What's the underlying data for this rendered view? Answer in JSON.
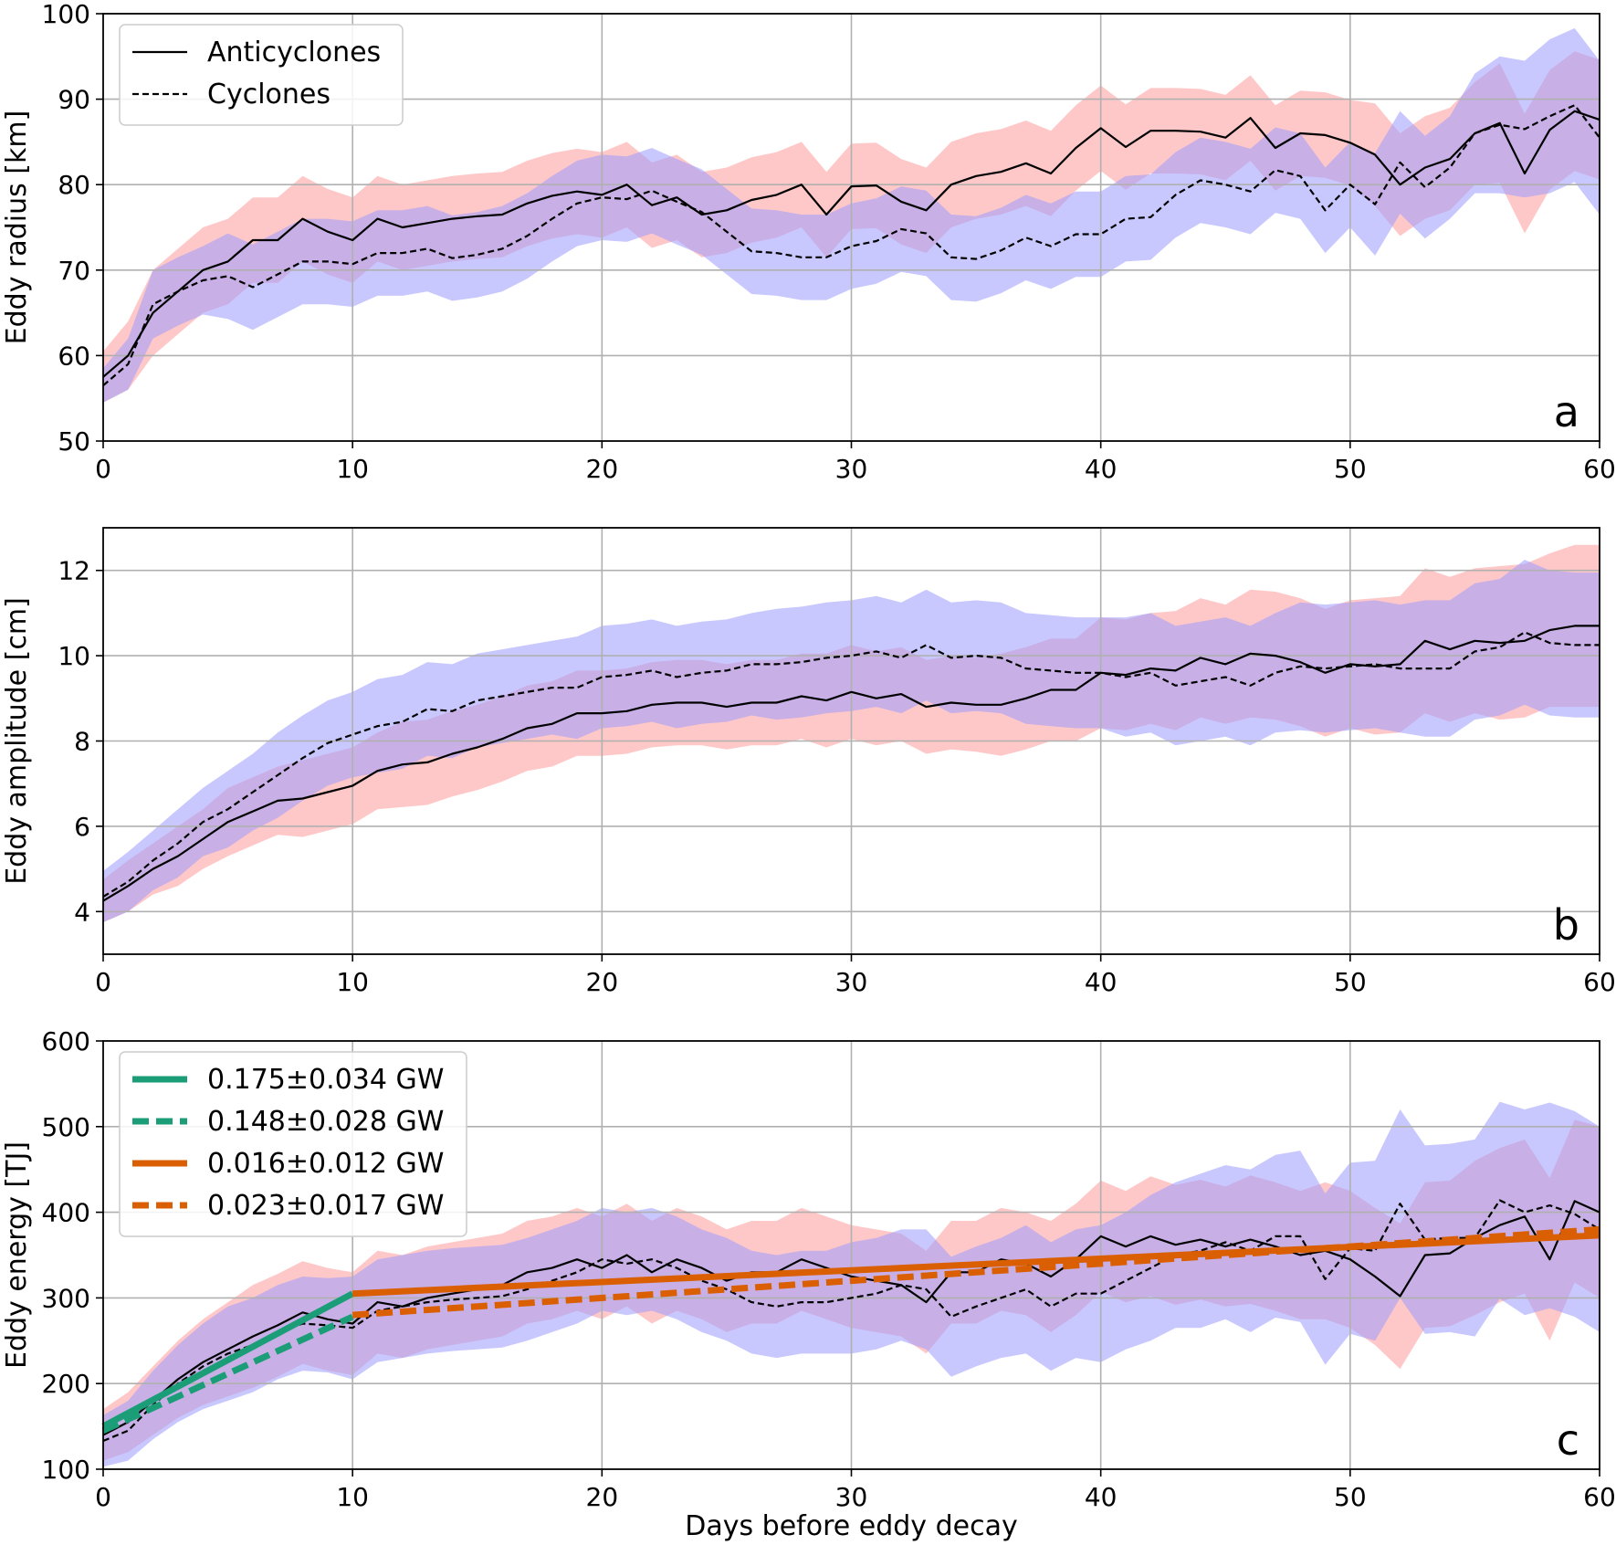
{
  "chart_data": [
    {
      "type": "line",
      "panel": "a",
      "ylabel": "Eddy radius [km]",
      "xlabel": "",
      "xlim": [
        0,
        60
      ],
      "ylim": [
        50,
        100
      ],
      "xticks": [
        0,
        10,
        20,
        30,
        40,
        50,
        60
      ],
      "yticks": [
        50,
        60,
        70,
        80,
        90,
        100
      ],
      "grid": true,
      "legend_position": "top-left",
      "legend": [
        {
          "label": "Anticyclones",
          "style": "solid",
          "color": "#000000"
        },
        {
          "label": "Cyclones",
          "style": "dashed",
          "color": "#000000"
        }
      ],
      "x": [
        0,
        1,
        2,
        3,
        4,
        5,
        6,
        7,
        8,
        9,
        10,
        11,
        12,
        13,
        14,
        15,
        16,
        17,
        18,
        19,
        20,
        21,
        22,
        23,
        24,
        25,
        26,
        27,
        28,
        29,
        30,
        31,
        32,
        33,
        34,
        35,
        36,
        37,
        38,
        39,
        40,
        41,
        42,
        43,
        44,
        45,
        46,
        47,
        48,
        49,
        50,
        51,
        52,
        53,
        54,
        55,
        56,
        57,
        58,
        59,
        60
      ],
      "series": [
        {
          "name": "Anticyclones",
          "style": "solid",
          "band_color": "#ff9a9a",
          "values": [
            57.5,
            60,
            65,
            67.5,
            70,
            71,
            73.5,
            73.5,
            76,
            74.5,
            73.5,
            76,
            75,
            75.5,
            76,
            76.3,
            76.5,
            77.8,
            78.7,
            79.2,
            78.8,
            80,
            77.6,
            78.5,
            76.5,
            77,
            78.2,
            78.8,
            80,
            76.5,
            79.8,
            79.9,
            78,
            77,
            80,
            81,
            81.5,
            82.5,
            81.3,
            84.3,
            86.6,
            84.4,
            86.3,
            86.3,
            86.2,
            85.5,
            87.8,
            84.3,
            86,
            85.8,
            84.9,
            83.5,
            80,
            82,
            83,
            86,
            87.2,
            81.3,
            86.4,
            88.6,
            87.6
          ],
          "spread": [
            3,
            4,
            5,
            5,
            5,
            5,
            5,
            5,
            5,
            5,
            5,
            5,
            5,
            5,
            5,
            5,
            5,
            5,
            5,
            5,
            5,
            5,
            5,
            5,
            5,
            5,
            5,
            5,
            5,
            5,
            5,
            5,
            5,
            5,
            5,
            5,
            5,
            5,
            5,
            5,
            5,
            5,
            5,
            5,
            5,
            5,
            5,
            5,
            5,
            5,
            5,
            6,
            6,
            6,
            6,
            6,
            7,
            7,
            7,
            7,
            7
          ]
        },
        {
          "name": "Cyclones",
          "style": "dashed",
          "band_color": "#9a9aff",
          "values": [
            56.5,
            59,
            66,
            67.5,
            68.8,
            69.3,
            68,
            69.5,
            71,
            71,
            70.7,
            72,
            72,
            72.5,
            71.4,
            71.8,
            72.5,
            74,
            76,
            77.8,
            78.5,
            78.3,
            79.3,
            78,
            76.8,
            74.5,
            72.2,
            72,
            71.5,
            71.5,
            72.8,
            73.4,
            74.8,
            74.3,
            71.5,
            71.3,
            72.3,
            73.8,
            72.8,
            74.2,
            74.2,
            76,
            76.2,
            78.8,
            80.5,
            80,
            79.2,
            81.7,
            81,
            77,
            80,
            77.7,
            82.6,
            79.7,
            82,
            86,
            87,
            86.5,
            88,
            89.3,
            85.5
          ],
          "spread": [
            2,
            3,
            4,
            4,
            4,
            5,
            5,
            5,
            5,
            5,
            5,
            5,
            5,
            5,
            5,
            5,
            5,
            5,
            5,
            5,
            5,
            5,
            5,
            5,
            5,
            5,
            5,
            5,
            5,
            5,
            5,
            5,
            5,
            5,
            5,
            5,
            5,
            5,
            5,
            5,
            5,
            5,
            5,
            5,
            5,
            5,
            5,
            5,
            5,
            5,
            5,
            6,
            6,
            6,
            6,
            7,
            8,
            8,
            9,
            9,
            9
          ]
        }
      ],
      "annotations": [
        "a"
      ]
    },
    {
      "type": "line",
      "panel": "b",
      "ylabel": "Eddy amplitude [cm]",
      "xlabel": "",
      "xlim": [
        0,
        60
      ],
      "ylim": [
        3,
        13
      ],
      "xticks": [
        0,
        10,
        20,
        30,
        40,
        50,
        60
      ],
      "yticks": [
        4,
        6,
        8,
        10,
        12
      ],
      "grid": true,
      "x": [
        0,
        1,
        2,
        3,
        4,
        5,
        6,
        7,
        8,
        9,
        10,
        11,
        12,
        13,
        14,
        15,
        16,
        17,
        18,
        19,
        20,
        21,
        22,
        23,
        24,
        25,
        26,
        27,
        28,
        29,
        30,
        31,
        32,
        33,
        34,
        35,
        36,
        37,
        38,
        39,
        40,
        41,
        42,
        43,
        44,
        45,
        46,
        47,
        48,
        49,
        50,
        51,
        52,
        53,
        54,
        55,
        56,
        57,
        58,
        59,
        60
      ],
      "series": [
        {
          "name": "Anticyclones",
          "style": "solid",
          "band_color": "#ff9a9a",
          "values": [
            4.25,
            4.6,
            5.0,
            5.3,
            5.7,
            6.1,
            6.35,
            6.6,
            6.65,
            6.8,
            6.95,
            7.3,
            7.45,
            7.5,
            7.7,
            7.85,
            8.05,
            8.3,
            8.4,
            8.65,
            8.65,
            8.7,
            8.85,
            8.9,
            8.9,
            8.8,
            8.9,
            8.9,
            9.05,
            8.95,
            9.15,
            9.0,
            9.1,
            8.8,
            8.9,
            8.85,
            8.85,
            9.0,
            9.2,
            9.2,
            9.6,
            9.55,
            9.7,
            9.65,
            9.95,
            9.8,
            10.05,
            10.0,
            9.85,
            9.6,
            9.8,
            9.75,
            9.8,
            10.35,
            10.15,
            10.35,
            10.3,
            10.35,
            10.6,
            10.7,
            10.7
          ],
          "spread": [
            0.5,
            0.6,
            0.6,
            0.7,
            0.7,
            0.8,
            0.8,
            0.8,
            0.9,
            0.9,
            0.9,
            0.9,
            1.0,
            1.0,
            1.0,
            1.0,
            1.0,
            1.0,
            1.0,
            1.0,
            1.0,
            1.0,
            1.0,
            1.0,
            1.0,
            1.0,
            1.0,
            1.0,
            1.0,
            1.1,
            1.1,
            1.1,
            1.1,
            1.1,
            1.1,
            1.1,
            1.2,
            1.2,
            1.2,
            1.2,
            1.3,
            1.3,
            1.3,
            1.4,
            1.4,
            1.4,
            1.5,
            1.5,
            1.5,
            1.5,
            1.5,
            1.6,
            1.6,
            1.7,
            1.7,
            1.7,
            1.8,
            1.8,
            1.8,
            1.9,
            1.9
          ]
        },
        {
          "name": "Cyclones",
          "style": "dashed",
          "band_color": "#9a9aff",
          "values": [
            4.35,
            4.7,
            5.2,
            5.6,
            6.1,
            6.4,
            6.8,
            7.2,
            7.6,
            7.95,
            8.15,
            8.35,
            8.45,
            8.75,
            8.7,
            8.95,
            9.05,
            9.15,
            9.25,
            9.25,
            9.5,
            9.55,
            9.65,
            9.5,
            9.6,
            9.65,
            9.8,
            9.8,
            9.85,
            9.95,
            10.0,
            10.1,
            9.95,
            10.25,
            9.95,
            10.0,
            9.95,
            9.7,
            9.65,
            9.6,
            9.6,
            9.5,
            9.6,
            9.3,
            9.4,
            9.5,
            9.3,
            9.6,
            9.75,
            9.7,
            9.75,
            9.8,
            9.7,
            9.7,
            9.7,
            10.1,
            10.2,
            10.55,
            10.3,
            10.25,
            10.25
          ],
          "spread": [
            0.6,
            0.7,
            0.7,
            0.8,
            0.8,
            0.9,
            0.9,
            1.0,
            1.0,
            1.0,
            1.0,
            1.1,
            1.1,
            1.1,
            1.1,
            1.1,
            1.1,
            1.1,
            1.1,
            1.2,
            1.2,
            1.2,
            1.2,
            1.2,
            1.2,
            1.2,
            1.2,
            1.3,
            1.3,
            1.3,
            1.3,
            1.3,
            1.3,
            1.3,
            1.3,
            1.3,
            1.3,
            1.3,
            1.3,
            1.3,
            1.3,
            1.4,
            1.4,
            1.4,
            1.4,
            1.4,
            1.4,
            1.4,
            1.5,
            1.5,
            1.5,
            1.5,
            1.5,
            1.6,
            1.6,
            1.6,
            1.6,
            1.7,
            1.7,
            1.7,
            1.7
          ]
        }
      ],
      "annotations": [
        "b"
      ]
    },
    {
      "type": "line",
      "panel": "c",
      "ylabel": "Eddy energy [TJ]",
      "xlabel": "Days before eddy decay",
      "xlim": [
        0,
        60
      ],
      "ylim": [
        100,
        600
      ],
      "xticks": [
        0,
        10,
        20,
        30,
        40,
        50,
        60
      ],
      "yticks": [
        100,
        200,
        300,
        400,
        500,
        600
      ],
      "grid": true,
      "legend_position": "top-left",
      "legend": [
        {
          "label": "0.175±0.034 GW",
          "style": "solid",
          "color": "#1b9e77"
        },
        {
          "label": "0.148±0.028 GW",
          "style": "dashed",
          "color": "#1b9e77"
        },
        {
          "label": "0.016±0.012 GW",
          "style": "solid",
          "color": "#d95f02"
        },
        {
          "label": "0.023±0.017 GW",
          "style": "dashed",
          "color": "#d95f02"
        }
      ],
      "x": [
        0,
        1,
        2,
        3,
        4,
        5,
        6,
        7,
        8,
        9,
        10,
        11,
        12,
        13,
        14,
        15,
        16,
        17,
        18,
        19,
        20,
        21,
        22,
        23,
        24,
        25,
        26,
        27,
        28,
        29,
        30,
        31,
        32,
        33,
        34,
        35,
        36,
        37,
        38,
        39,
        40,
        41,
        42,
        43,
        44,
        45,
        46,
        47,
        48,
        49,
        50,
        51,
        52,
        53,
        54,
        55,
        56,
        57,
        58,
        59,
        60
      ],
      "series": [
        {
          "name": "Anticyclones",
          "style": "solid",
          "band_color": "#ff9a9a",
          "values": [
            140,
            155,
            180,
            205,
            225,
            240,
            255,
            268,
            283,
            275,
            270,
            295,
            290,
            300,
            305,
            310,
            315,
            330,
            335,
            345,
            335,
            350,
            330,
            345,
            335,
            320,
            330,
            330,
            345,
            335,
            325,
            320,
            315,
            295,
            330,
            330,
            345,
            340,
            325,
            345,
            372,
            360,
            372,
            362,
            368,
            360,
            368,
            360,
            350,
            355,
            345,
            325,
            302,
            350,
            352,
            370,
            385,
            395,
            345,
            413,
            400
          ],
          "spread": [
            30,
            35,
            40,
            45,
            50,
            55,
            60,
            60,
            60,
            60,
            60,
            60,
            60,
            60,
            60,
            60,
            60,
            60,
            60,
            60,
            60,
            60,
            60,
            60,
            60,
            60,
            60,
            60,
            60,
            60,
            60,
            60,
            60,
            60,
            60,
            60,
            60,
            60,
            65,
            65,
            65,
            65,
            70,
            70,
            70,
            70,
            75,
            75,
            75,
            80,
            80,
            80,
            85,
            85,
            85,
            90,
            90,
            90,
            95,
            95,
            100
          ]
        },
        {
          "name": "Cyclones",
          "style": "dashed",
          "band_color": "#9a9aff",
          "values": [
            133,
            145,
            175,
            200,
            220,
            235,
            245,
            260,
            270,
            268,
            265,
            285,
            290,
            295,
            298,
            300,
            302,
            310,
            320,
            330,
            345,
            340,
            345,
            335,
            320,
            310,
            295,
            290,
            295,
            295,
            300,
            305,
            315,
            310,
            278,
            290,
            300,
            310,
            290,
            305,
            305,
            320,
            335,
            350,
            355,
            365,
            355,
            372,
            372,
            322,
            358,
            355,
            410,
            368,
            370,
            370,
            414,
            400,
            408,
            398,
            380
          ],
          "spread": [
            30,
            35,
            40,
            45,
            50,
            55,
            55,
            55,
            55,
            55,
            60,
            60,
            60,
            60,
            60,
            60,
            60,
            60,
            60,
            60,
            60,
            60,
            60,
            60,
            60,
            60,
            60,
            60,
            60,
            60,
            65,
            65,
            65,
            70,
            70,
            70,
            70,
            75,
            75,
            75,
            80,
            80,
            85,
            85,
            90,
            90,
            95,
            95,
            100,
            100,
            100,
            105,
            110,
            110,
            110,
            115,
            115,
            120,
            120,
            120,
            120
          ]
        }
      ],
      "fits": [
        {
          "label": "0.175±0.034 GW",
          "style": "solid",
          "color": "#1b9e77",
          "x": [
            0,
            10
          ],
          "y": [
            150,
            305
          ]
        },
        {
          "label": "0.148±0.028 GW",
          "style": "dashed",
          "color": "#1b9e77",
          "x": [
            0,
            10
          ],
          "y": [
            145,
            278
          ]
        },
        {
          "label": "0.016±0.012 GW",
          "style": "solid",
          "color": "#d95f02",
          "x": [
            10,
            60
          ],
          "y": [
            305,
            373
          ]
        },
        {
          "label": "0.023±0.017 GW",
          "style": "dashed",
          "color": "#d95f02",
          "x": [
            10,
            60
          ],
          "y": [
            280,
            380
          ]
        }
      ],
      "annotations": [
        "c"
      ]
    }
  ]
}
